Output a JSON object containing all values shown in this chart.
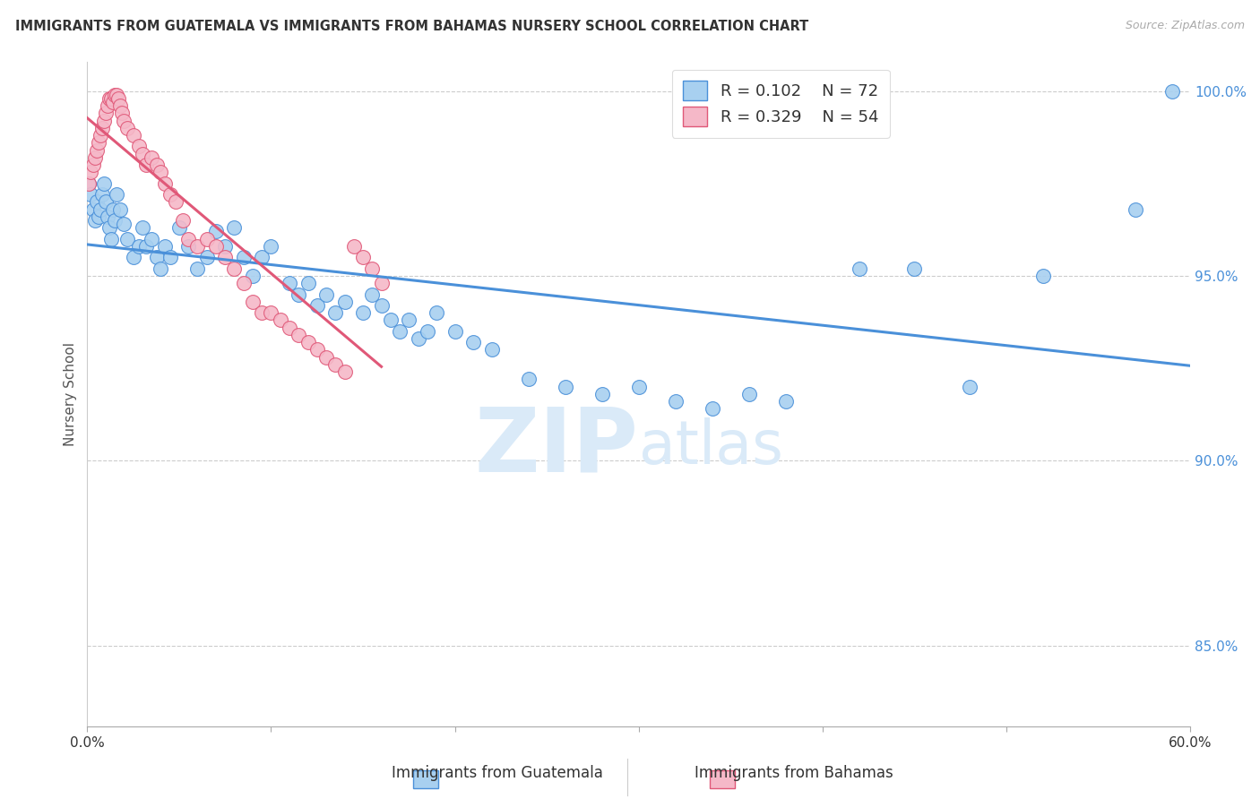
{
  "title": "IMMIGRANTS FROM GUATEMALA VS IMMIGRANTS FROM BAHAMAS NURSERY SCHOOL CORRELATION CHART",
  "source": "Source: ZipAtlas.com",
  "xlabel_blue": "Immigrants from Guatemala",
  "xlabel_pink": "Immigrants from Bahamas",
  "ylabel": "Nursery School",
  "xlim": [
    0.0,
    0.6
  ],
  "ylim": [
    0.828,
    1.008
  ],
  "xticks": [
    0.0,
    0.1,
    0.2,
    0.3,
    0.4,
    0.5,
    0.6
  ],
  "xtick_labels": [
    "0.0%",
    "",
    "",
    "",
    "",
    "",
    "60.0%"
  ],
  "ytick_labels": [
    "100.0%",
    "95.0%",
    "90.0%",
    "85.0%"
  ],
  "ytick_vals": [
    1.0,
    0.95,
    0.9,
    0.85
  ],
  "R_blue": 0.102,
  "N_blue": 72,
  "R_pink": 0.329,
  "N_pink": 54,
  "blue_color": "#a8d0f0",
  "pink_color": "#f5b8c8",
  "blue_line_color": "#4a90d9",
  "pink_line_color": "#e05878",
  "watermark_color": "#daeaf8",
  "blue_x": [
    0.001,
    0.002,
    0.003,
    0.004,
    0.005,
    0.006,
    0.007,
    0.008,
    0.009,
    0.01,
    0.011,
    0.012,
    0.013,
    0.014,
    0.015,
    0.016,
    0.018,
    0.02,
    0.022,
    0.025,
    0.028,
    0.03,
    0.032,
    0.035,
    0.038,
    0.04,
    0.042,
    0.045,
    0.05,
    0.055,
    0.06,
    0.065,
    0.07,
    0.075,
    0.08,
    0.085,
    0.09,
    0.095,
    0.1,
    0.11,
    0.115,
    0.12,
    0.125,
    0.13,
    0.135,
    0.14,
    0.15,
    0.155,
    0.16,
    0.165,
    0.17,
    0.175,
    0.18,
    0.185,
    0.19,
    0.2,
    0.21,
    0.22,
    0.24,
    0.26,
    0.28,
    0.3,
    0.32,
    0.34,
    0.36,
    0.38,
    0.42,
    0.45,
    0.48,
    0.52,
    0.57,
    0.59
  ],
  "blue_y": [
    0.975,
    0.972,
    0.968,
    0.965,
    0.97,
    0.966,
    0.968,
    0.972,
    0.975,
    0.97,
    0.966,
    0.963,
    0.96,
    0.968,
    0.965,
    0.972,
    0.968,
    0.964,
    0.96,
    0.955,
    0.958,
    0.963,
    0.958,
    0.96,
    0.955,
    0.952,
    0.958,
    0.955,
    0.963,
    0.958,
    0.952,
    0.955,
    0.962,
    0.958,
    0.963,
    0.955,
    0.95,
    0.955,
    0.958,
    0.948,
    0.945,
    0.948,
    0.942,
    0.945,
    0.94,
    0.943,
    0.94,
    0.945,
    0.942,
    0.938,
    0.935,
    0.938,
    0.933,
    0.935,
    0.94,
    0.935,
    0.932,
    0.93,
    0.922,
    0.92,
    0.918,
    0.92,
    0.916,
    0.914,
    0.918,
    0.916,
    0.952,
    0.952,
    0.92,
    0.95,
    0.968,
    1.0
  ],
  "pink_x": [
    0.001,
    0.002,
    0.003,
    0.004,
    0.005,
    0.006,
    0.007,
    0.008,
    0.009,
    0.01,
    0.011,
    0.012,
    0.013,
    0.014,
    0.015,
    0.016,
    0.017,
    0.018,
    0.019,
    0.02,
    0.022,
    0.025,
    0.028,
    0.03,
    0.032,
    0.035,
    0.038,
    0.04,
    0.042,
    0.045,
    0.048,
    0.052,
    0.055,
    0.06,
    0.065,
    0.07,
    0.075,
    0.08,
    0.085,
    0.09,
    0.095,
    0.1,
    0.105,
    0.11,
    0.115,
    0.12,
    0.125,
    0.13,
    0.135,
    0.14,
    0.145,
    0.15,
    0.155,
    0.16
  ],
  "pink_y": [
    0.975,
    0.978,
    0.98,
    0.982,
    0.984,
    0.986,
    0.988,
    0.99,
    0.992,
    0.994,
    0.996,
    0.998,
    0.998,
    0.997,
    0.999,
    0.999,
    0.998,
    0.996,
    0.994,
    0.992,
    0.99,
    0.988,
    0.985,
    0.983,
    0.98,
    0.982,
    0.98,
    0.978,
    0.975,
    0.972,
    0.97,
    0.965,
    0.96,
    0.958,
    0.96,
    0.958,
    0.955,
    0.952,
    0.948,
    0.943,
    0.94,
    0.94,
    0.938,
    0.936,
    0.934,
    0.932,
    0.93,
    0.928,
    0.926,
    0.924,
    0.958,
    0.955,
    0.952,
    0.948
  ]
}
